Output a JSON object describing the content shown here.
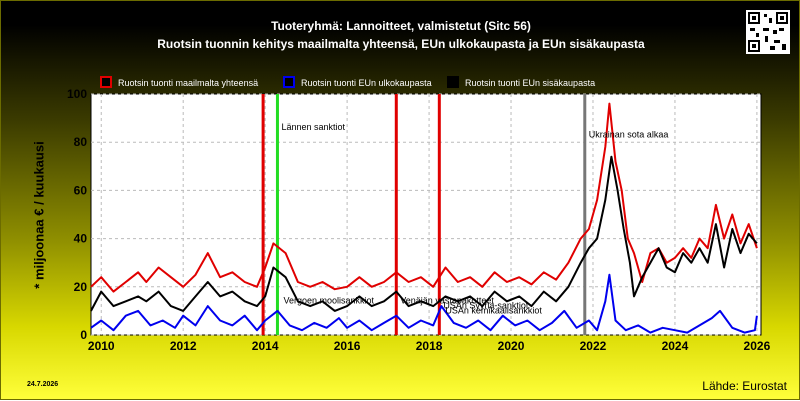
{
  "header": {
    "title_line1": "Tuoteryhmä: Lannoitteet, valmistetut (Sitc 56)",
    "title_line2": "Ruotsin tuonnin kehitys maailmalta yhteensä, EUn ulkokaupasta ja EUn sisäkaupasta"
  },
  "footer": {
    "date": "24.7.2026",
    "source": "Lähde: Eurostat"
  },
  "chart_data": {
    "type": "line",
    "ylabel": "* miljoonaa € / kuukausi",
    "ylim": [
      0,
      100
    ],
    "yticks": [
      0,
      20,
      40,
      60,
      80,
      100
    ],
    "xlim": [
      2009.75,
      2026.1
    ],
    "xticks": [
      2010,
      2012,
      2014,
      2016,
      2018,
      2020,
      2022,
      2024,
      2026
    ],
    "grid": true,
    "legend_position": "top-left",
    "series": [
      {
        "name": "Ruotsin tuonti maailmalta yhteensä",
        "color": "#e00000",
        "points": [
          [
            2009.75,
            20
          ],
          [
            2010,
            24
          ],
          [
            2010.3,
            18
          ],
          [
            2010.6,
            22
          ],
          [
            2010.9,
            26
          ],
          [
            2011.1,
            22
          ],
          [
            2011.4,
            28
          ],
          [
            2011.7,
            24
          ],
          [
            2012,
            20
          ],
          [
            2012.3,
            25
          ],
          [
            2012.6,
            34
          ],
          [
            2012.9,
            24
          ],
          [
            2013.2,
            26
          ],
          [
            2013.5,
            22
          ],
          [
            2013.8,
            20
          ],
          [
            2014,
            28
          ],
          [
            2014.2,
            38
          ],
          [
            2014.5,
            34
          ],
          [
            2014.8,
            22
          ],
          [
            2015.1,
            20
          ],
          [
            2015.4,
            22
          ],
          [
            2015.7,
            19
          ],
          [
            2016,
            20
          ],
          [
            2016.3,
            24
          ],
          [
            2016.6,
            20
          ],
          [
            2016.9,
            22
          ],
          [
            2017.2,
            26
          ],
          [
            2017.5,
            22
          ],
          [
            2017.8,
            24
          ],
          [
            2018.1,
            20
          ],
          [
            2018.4,
            28
          ],
          [
            2018.7,
            22
          ],
          [
            2019,
            24
          ],
          [
            2019.3,
            20
          ],
          [
            2019.6,
            26
          ],
          [
            2019.9,
            22
          ],
          [
            2020.2,
            24
          ],
          [
            2020.5,
            21
          ],
          [
            2020.8,
            26
          ],
          [
            2021.1,
            23
          ],
          [
            2021.4,
            30
          ],
          [
            2021.7,
            40
          ],
          [
            2021.9,
            44
          ],
          [
            2022.1,
            56
          ],
          [
            2022.3,
            78
          ],
          [
            2022.4,
            96
          ],
          [
            2022.55,
            72
          ],
          [
            2022.7,
            60
          ],
          [
            2022.85,
            40
          ],
          [
            2023,
            34
          ],
          [
            2023.2,
            22
          ],
          [
            2023.4,
            34
          ],
          [
            2023.6,
            36
          ],
          [
            2023.8,
            30
          ],
          [
            2024,
            32
          ],
          [
            2024.2,
            36
          ],
          [
            2024.4,
            32
          ],
          [
            2024.6,
            40
          ],
          [
            2024.8,
            36
          ],
          [
            2025,
            54
          ],
          [
            2025.2,
            40
          ],
          [
            2025.4,
            50
          ],
          [
            2025.6,
            38
          ],
          [
            2025.8,
            46
          ],
          [
            2026,
            36
          ]
        ]
      },
      {
        "name": "Ruotsin tuonti EUn ulkokaupasta",
        "color": "#0000ee",
        "points": [
          [
            2009.75,
            3
          ],
          [
            2010,
            6
          ],
          [
            2010.3,
            2
          ],
          [
            2010.6,
            8
          ],
          [
            2010.9,
            10
          ],
          [
            2011.2,
            4
          ],
          [
            2011.5,
            6
          ],
          [
            2011.8,
            3
          ],
          [
            2012,
            8
          ],
          [
            2012.3,
            4
          ],
          [
            2012.6,
            12
          ],
          [
            2012.9,
            6
          ],
          [
            2013.2,
            4
          ],
          [
            2013.5,
            8
          ],
          [
            2013.8,
            2
          ],
          [
            2014,
            6
          ],
          [
            2014.3,
            10
          ],
          [
            2014.6,
            4
          ],
          [
            2014.9,
            2
          ],
          [
            2015.2,
            5
          ],
          [
            2015.5,
            3
          ],
          [
            2015.8,
            7
          ],
          [
            2016,
            3
          ],
          [
            2016.3,
            6
          ],
          [
            2016.6,
            2
          ],
          [
            2016.9,
            5
          ],
          [
            2017.2,
            8
          ],
          [
            2017.5,
            3
          ],
          [
            2017.8,
            6
          ],
          [
            2018.1,
            4
          ],
          [
            2018.3,
            12
          ],
          [
            2018.6,
            5
          ],
          [
            2018.9,
            3
          ],
          [
            2019.2,
            6
          ],
          [
            2019.5,
            2
          ],
          [
            2019.8,
            8
          ],
          [
            2020.1,
            4
          ],
          [
            2020.4,
            6
          ],
          [
            2020.7,
            2
          ],
          [
            2021,
            5
          ],
          [
            2021.3,
            10
          ],
          [
            2021.6,
            3
          ],
          [
            2021.9,
            6
          ],
          [
            2022.1,
            2
          ],
          [
            2022.3,
            14
          ],
          [
            2022.4,
            25
          ],
          [
            2022.55,
            6
          ],
          [
            2022.8,
            2
          ],
          [
            2023.1,
            4
          ],
          [
            2023.4,
            1
          ],
          [
            2023.7,
            3
          ],
          [
            2024,
            2
          ],
          [
            2024.3,
            1
          ],
          [
            2024.6,
            4
          ],
          [
            2024.9,
            7
          ],
          [
            2025.1,
            10
          ],
          [
            2025.4,
            3
          ],
          [
            2025.7,
            1
          ],
          [
            2025.95,
            2
          ],
          [
            2026,
            8
          ]
        ]
      },
      {
        "name": "Ruotsin tuonti EUn sisäkaupasta",
        "color": "#000000",
        "points": [
          [
            2009.75,
            10
          ],
          [
            2010,
            18
          ],
          [
            2010.3,
            12
          ],
          [
            2010.6,
            14
          ],
          [
            2010.9,
            16
          ],
          [
            2011.1,
            14
          ],
          [
            2011.4,
            18
          ],
          [
            2011.7,
            12
          ],
          [
            2012,
            10
          ],
          [
            2012.3,
            16
          ],
          [
            2012.6,
            22
          ],
          [
            2012.9,
            16
          ],
          [
            2013.2,
            18
          ],
          [
            2013.5,
            14
          ],
          [
            2013.8,
            12
          ],
          [
            2014,
            16
          ],
          [
            2014.2,
            28
          ],
          [
            2014.5,
            24
          ],
          [
            2014.8,
            14
          ],
          [
            2015.1,
            12
          ],
          [
            2015.4,
            14
          ],
          [
            2015.7,
            10
          ],
          [
            2016,
            12
          ],
          [
            2016.3,
            16
          ],
          [
            2016.6,
            12
          ],
          [
            2016.9,
            14
          ],
          [
            2017.2,
            18
          ],
          [
            2017.5,
            12
          ],
          [
            2017.8,
            14
          ],
          [
            2018.1,
            12
          ],
          [
            2018.4,
            16
          ],
          [
            2018.7,
            14
          ],
          [
            2019,
            16
          ],
          [
            2019.3,
            12
          ],
          [
            2019.6,
            18
          ],
          [
            2019.9,
            14
          ],
          [
            2020.2,
            16
          ],
          [
            2020.5,
            12
          ],
          [
            2020.8,
            18
          ],
          [
            2021.1,
            14
          ],
          [
            2021.4,
            20
          ],
          [
            2021.7,
            30
          ],
          [
            2021.9,
            36
          ],
          [
            2022.1,
            40
          ],
          [
            2022.3,
            56
          ],
          [
            2022.45,
            74
          ],
          [
            2022.6,
            60
          ],
          [
            2022.75,
            44
          ],
          [
            2022.9,
            30
          ],
          [
            2023,
            16
          ],
          [
            2023.2,
            24
          ],
          [
            2023.4,
            30
          ],
          [
            2023.6,
            36
          ],
          [
            2023.8,
            28
          ],
          [
            2024,
            26
          ],
          [
            2024.2,
            34
          ],
          [
            2024.4,
            30
          ],
          [
            2024.6,
            36
          ],
          [
            2024.8,
            30
          ],
          [
            2025,
            46
          ],
          [
            2025.2,
            28
          ],
          [
            2025.4,
            44
          ],
          [
            2025.6,
            34
          ],
          [
            2025.8,
            42
          ],
          [
            2026,
            38
          ]
        ]
      }
    ],
    "events": [
      {
        "x": 2013.95,
        "color": "#e00000",
        "label": ""
      },
      {
        "x": 2014.3,
        "color": "#22dd22",
        "label": "Lännen sanktiot",
        "label_y": 85
      },
      {
        "x": 2017.2,
        "color": "#e00000",
        "label": "Venäjän vastapakotteet",
        "label_y": 13
      },
      {
        "x": 2018.25,
        "color": "#e00000",
        "label": "USAn Syyria-sanktiot",
        "label_y": 11
      },
      {
        "x": 2021.8,
        "color": "#777777",
        "label": "Ukrainan sota alkaa",
        "label_y": 82
      }
    ],
    "annotations": [
      {
        "text": "Vergoen moolisankkiot",
        "x": 2014.35,
        "y": 13
      },
      {
        "text": "USAn kemikaalisankkiot",
        "x": 2018.3,
        "y": 9
      }
    ]
  }
}
